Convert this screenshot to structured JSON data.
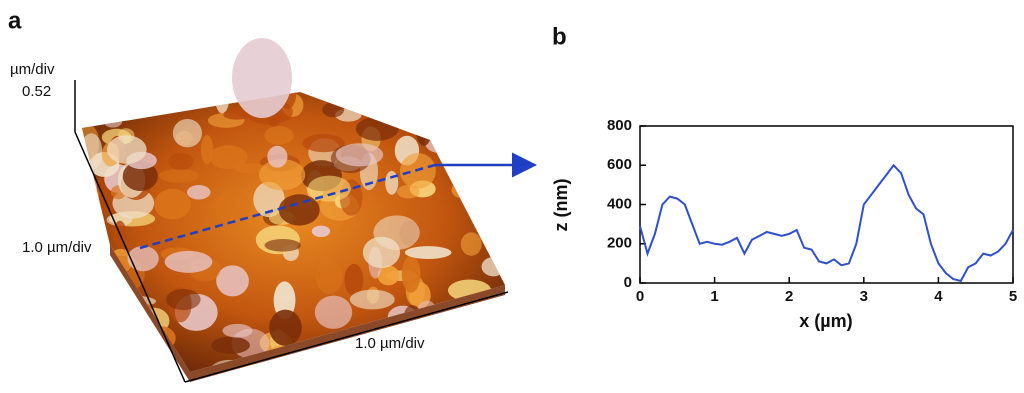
{
  "panel_a": {
    "label": "a",
    "z_unit": "µm/div",
    "z_scale": "0.52",
    "y_scale": "1.0 µm/div",
    "x_scale": "1.0 µm/div"
  },
  "chart_data": {
    "type": "line",
    "panel_label": "b",
    "xlabel": "x (µm)",
    "ylabel": "z (nm)",
    "color": "#2e4fd0",
    "x": [
      0,
      0.1,
      0.2,
      0.3,
      0.4,
      0.5,
      0.6,
      0.7,
      0.8,
      0.9,
      1.0,
      1.1,
      1.2,
      1.3,
      1.4,
      1.5,
      1.6,
      1.7,
      1.8,
      1.9,
      2.0,
      2.1,
      2.2,
      2.3,
      2.4,
      2.5,
      2.6,
      2.7,
      2.8,
      2.9,
      3.0,
      3.1,
      3.2,
      3.3,
      3.4,
      3.5,
      3.6,
      3.7,
      3.8,
      3.9,
      4.0,
      4.1,
      4.2,
      4.3,
      4.4,
      4.5,
      4.6,
      4.7,
      4.8,
      4.9,
      5.0
    ],
    "values": [
      290,
      150,
      250,
      400,
      440,
      430,
      400,
      300,
      200,
      210,
      200,
      195,
      210,
      230,
      150,
      220,
      240,
      260,
      250,
      240,
      250,
      270,
      180,
      170,
      110,
      100,
      120,
      90,
      100,
      200,
      400,
      450,
      500,
      550,
      600,
      560,
      450,
      380,
      350,
      200,
      100,
      50,
      20,
      10,
      80,
      100,
      150,
      140,
      160,
      200,
      270
    ],
    "xlim": [
      0,
      5
    ],
    "xticks": [
      0,
      1,
      2,
      3,
      4,
      5
    ],
    "ylim": [
      0,
      800
    ],
    "yticks": [
      0,
      200,
      400,
      600,
      800
    ]
  }
}
